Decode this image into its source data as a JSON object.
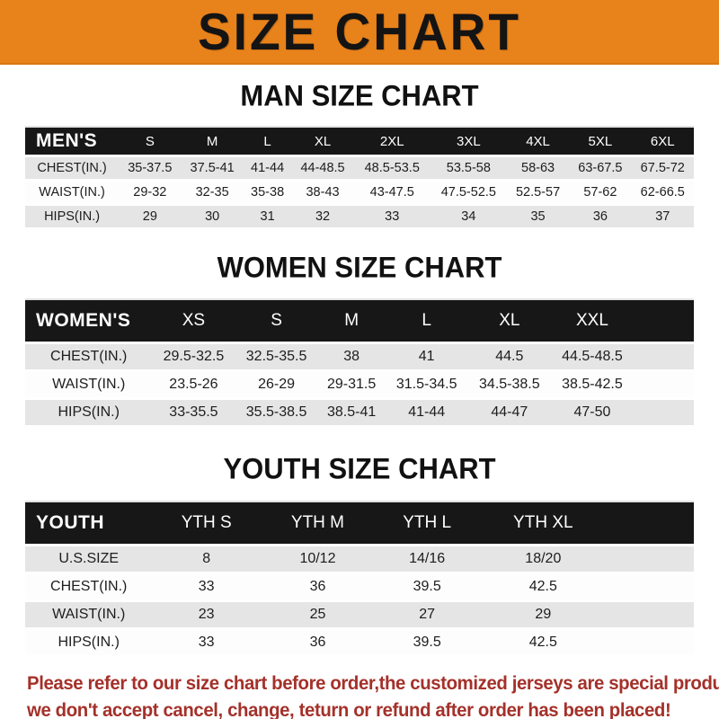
{
  "banner": {
    "title": "SIZE CHART",
    "bg_color": "#E8821B",
    "text_color": "#141414"
  },
  "colors": {
    "header_bar": "#171717",
    "row_shaded": "#E5E5E6",
    "row_plain": "#FDFDFD",
    "footer_text": "#A4312A"
  },
  "sections": [
    {
      "id": "men",
      "title": "MAN SIZE CHART",
      "variant": "compact",
      "spacer_percent": 0,
      "header": [
        "MEN'S",
        "S",
        "M",
        "L",
        "XL",
        "2XL",
        "3XL",
        "4XL",
        "5XL",
        "6XL"
      ],
      "rows": [
        [
          "CHEST(IN.)",
          "35-37.5",
          "37.5-41",
          "41-44",
          "44-48.5",
          "48.5-53.5",
          "53.5-58",
          "58-63",
          "63-67.5",
          "67.5-72"
        ],
        [
          "WAIST(IN.)",
          "29-32",
          "32-35",
          "35-38",
          "38-43",
          "43-47.5",
          "47.5-52.5",
          "52.5-57",
          "57-62",
          "62-66.5"
        ],
        [
          "HIPS(IN.)",
          "29",
          "30",
          "31",
          "32",
          "33",
          "34",
          "35",
          "36",
          "37"
        ]
      ]
    },
    {
      "id": "women",
      "title": "WOMEN SIZE CHART",
      "variant": "roomy",
      "spacer_percent": 9,
      "header": [
        "WOMEN'S",
        "XS",
        "S",
        "M",
        "L",
        "XL",
        "XXL"
      ],
      "rows": [
        [
          "CHEST(IN.)",
          "29.5-32.5",
          "32.5-35.5",
          "38",
          "41",
          "44.5",
          "44.5-48.5"
        ],
        [
          "WAIST(IN.)",
          "23.5-26",
          "26-29",
          "29-31.5",
          "31.5-34.5",
          "34.5-38.5",
          "38.5-42.5"
        ],
        [
          "HIPS(IN.)",
          "33-35.5",
          "35.5-38.5",
          "38.5-41",
          "41-44",
          "44-47",
          "47-50"
        ]
      ]
    },
    {
      "id": "youth",
      "title": "YOUTH SIZE CHART",
      "variant": "roomy",
      "spacer_percent": 13,
      "header": [
        "YOUTH",
        "YTH S",
        "YTH M",
        "YTH L",
        "YTH XL"
      ],
      "rows": [
        [
          "U.S.SIZE",
          "8",
          "10/12",
          "14/16",
          "18/20"
        ],
        [
          "CHEST(IN.)",
          "33",
          "36",
          "39.5",
          "42.5"
        ],
        [
          "WAIST(IN.)",
          "23",
          "25",
          "27",
          "29"
        ],
        [
          "HIPS(IN.)",
          "33",
          "36",
          "39.5",
          "42.5"
        ]
      ]
    }
  ],
  "footer": {
    "line1": "Please refer to our size chart before order,the customized jerseys are special products,",
    "line2": "we don't accept cancel, change, teturn or refund after order has been placed!"
  }
}
